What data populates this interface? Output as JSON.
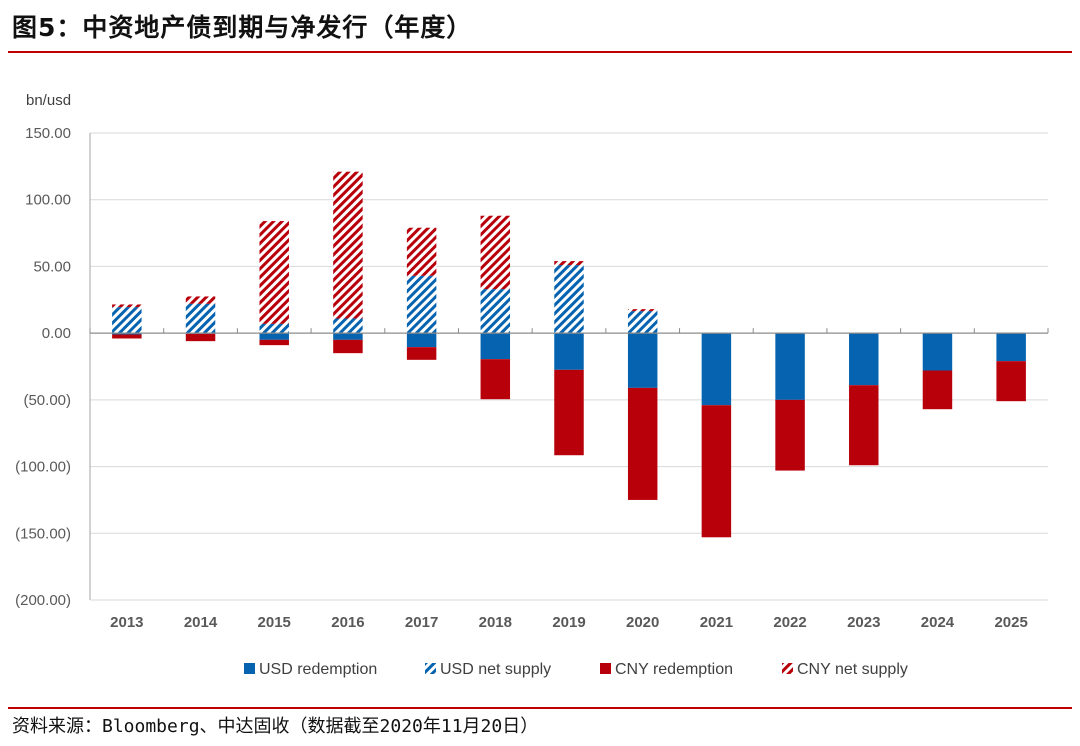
{
  "figure": {
    "title": "图5：中资地产债到期与净发行（年度）",
    "source": "资料来源：Bloomberg、中达固收（数据截至2020年11月20日）"
  },
  "colors": {
    "usd": "#0563b0",
    "cny": "#b8000b",
    "rule": "#c00000",
    "grid": "#d9d9d9",
    "axis": "#a6a6a6"
  },
  "chart_data": {
    "type": "bar",
    "stacked": true,
    "title": "中资地产债到期与净发行（年度）",
    "ylabel": "bn/usd",
    "xlabel": "",
    "ylim": [
      -200,
      150
    ],
    "yticks": [
      150,
      100,
      50,
      0,
      -50,
      -100,
      -150,
      -200
    ],
    "ytick_labels": [
      "150.00",
      "100.00",
      "50.00",
      "0.00",
      "(50.00)",
      "(100.00)",
      "(150.00)",
      "(200.00)"
    ],
    "grid": true,
    "legend_position": "bottom",
    "categories": [
      "2013",
      "2014",
      "2015",
      "2016",
      "2017",
      "2018",
      "2019",
      "2020",
      "2021",
      "2022",
      "2023",
      "2024",
      "2025"
    ],
    "series": [
      {
        "name": "USD redemption",
        "key": "usd_red",
        "color": "#0563b0",
        "pattern": "solid",
        "values": [
          -1,
          -0.5,
          -5,
          -5,
          -10.5,
          -19.5,
          -27.5,
          -41,
          -54,
          -50,
          -39,
          -28,
          -21
        ]
      },
      {
        "name": "USD net supply",
        "key": "usd_net",
        "color": "#0563b0",
        "pattern": "hatch",
        "values": [
          19.5,
          22,
          7,
          11,
          43,
          33,
          51,
          16.5,
          0,
          0,
          0,
          0,
          0
        ]
      },
      {
        "name": "CNY redemption",
        "key": "cny_red",
        "color": "#b8000b",
        "pattern": "solid",
        "values": [
          -3,
          -5.5,
          -4,
          -10,
          -9.5,
          -30,
          -64,
          -84,
          -99,
          -53,
          -60,
          -29,
          -30
        ]
      },
      {
        "name": "CNY net supply",
        "key": "cny_net",
        "color": "#b8000b",
        "pattern": "hatch",
        "values": [
          2,
          5.5,
          77,
          110,
          36,
          55,
          3,
          1.5,
          0,
          0,
          0,
          0,
          0
        ]
      }
    ]
  }
}
